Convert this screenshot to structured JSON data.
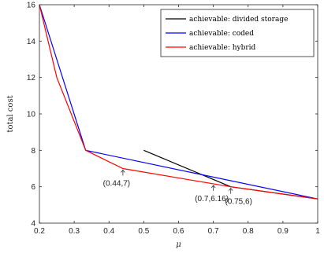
{
  "chart_data": {
    "type": "line",
    "title": "",
    "xlabel": "μ",
    "ylabel": "total cost",
    "xlim": [
      0.2,
      1
    ],
    "ylim": [
      4,
      16
    ],
    "xticks": [
      0.2,
      0.3,
      0.4,
      0.5,
      0.6,
      0.7,
      0.8,
      0.9,
      1
    ],
    "yticks": [
      4,
      6,
      8,
      10,
      12,
      14,
      16
    ],
    "xtick_labels": [
      "0.2",
      "0.3",
      "0.4",
      "0.5",
      "0.6",
      "0.7",
      "0.8",
      "0.9",
      "1"
    ],
    "ytick_labels": [
      "4",
      "6",
      "8",
      "10",
      "12",
      "14",
      "16"
    ],
    "grid": false,
    "legend_position": "top-right",
    "series": [
      {
        "name": "achievable: divided storage",
        "color": "#000000",
        "x": [
          0.5,
          0.75,
          1.0
        ],
        "y": [
          8.0,
          6.0,
          5.33
        ]
      },
      {
        "name": "achievable: coded",
        "color": "#0000ff",
        "x": [
          0.2,
          0.333,
          1.0
        ],
        "y": [
          16.0,
          8.0,
          5.33
        ]
      },
      {
        "name": "achievable: hybrid",
        "color": "#ff0000",
        "x": [
          0.2,
          0.25,
          0.333,
          0.44,
          0.7,
          0.75,
          1.0
        ],
        "y": [
          16.0,
          12.0,
          8.0,
          7.0,
          6.16,
          6.0,
          5.33
        ]
      }
    ],
    "annotations": [
      {
        "text": "(0.44,7)",
        "x": 0.44,
        "y": 7
      },
      {
        "text": "(0.7,6.16)",
        "x": 0.7,
        "y": 6.16
      },
      {
        "text": "(0.75,6)",
        "x": 0.75,
        "y": 6
      }
    ]
  }
}
